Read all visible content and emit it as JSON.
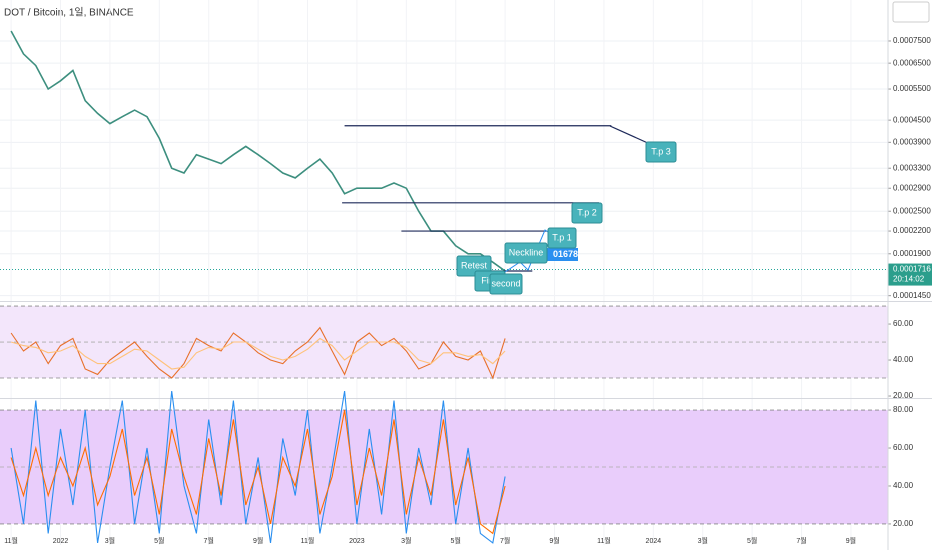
{
  "chart_data": [
    {
      "type": "line",
      "title": "DOT / Bitcoin, 1일, BINANCE",
      "x": [
        0,
        0.5,
        1,
        1.5,
        2,
        2.5,
        3,
        3.5,
        4,
        4.5,
        5,
        5.5,
        6,
        6.5,
        7,
        7.5,
        8,
        8.5,
        9,
        9.5,
        10,
        10.5,
        11,
        11.5,
        12,
        12.5,
        13,
        13.5,
        14,
        14.5,
        15,
        15.5,
        16,
        16.5,
        17,
        17.5,
        18,
        18.5,
        19,
        19.5,
        20
      ],
      "xlim": [
        -0.45,
        35.5
      ],
      "log_scale": true,
      "ylim": [
        0.000141,
        0.000977
      ],
      "grid": true,
      "yticks": [
        {
          "value": 0.00075,
          "label": "0.0007500"
        },
        {
          "value": 0.00065,
          "label": "0.0006500"
        },
        {
          "value": 0.00055,
          "label": "0.0005500"
        },
        {
          "value": 0.00045,
          "label": "0.0004500"
        },
        {
          "value": 0.00039,
          "label": "0.0003900"
        },
        {
          "value": 0.00033,
          "label": "0.0003300"
        },
        {
          "value": 0.00029,
          "label": "0.0002900"
        },
        {
          "value": 0.00025,
          "label": "0.0002500"
        },
        {
          "value": 0.00022,
          "label": "0.0002200"
        },
        {
          "value": 0.00019,
          "label": "0.0001900"
        },
        {
          "value": 0.000145,
          "label": "0.0001450"
        }
      ],
      "series": [
        {
          "color": "#3d8f7f",
          "values": [
            0.0008,
            0.00069,
            0.00064,
            0.00055,
            0.00058,
            0.00062,
            0.00051,
            0.00047,
            0.00044,
            0.00046,
            0.00048,
            0.00046,
            0.0004,
            0.00033,
            0.00032,
            0.00036,
            0.00035,
            0.00034,
            0.00036,
            0.00038,
            0.00036,
            0.00034,
            0.00032,
            0.00031,
            0.00033,
            0.00035,
            0.00032,
            0.00028,
            0.00029,
            0.00029,
            0.00029,
            0.0003,
            0.00029,
            0.00025,
            0.00022,
            0.00022,
            0.0002,
            0.00019,
            0.00019,
            0.00018,
            0.00017
          ]
        }
      ],
      "last_price": {
        "value": 0.0001716,
        "label": "0.0001716"
      },
      "countdown": "20:14:02",
      "levels": [
        {
          "value": 0.000434,
          "x": [
            13.5,
            24.3
          ]
        },
        {
          "value": 0.000264,
          "x": [
            13.4,
            23.8
          ]
        },
        {
          "value": 0.00022,
          "x": [
            15.8,
            21.7
          ]
        },
        {
          "value": 0.00017,
          "x": [
            18.2,
            21.1
          ]
        }
      ],
      "level_color": "#1e2a5a",
      "callouts": [
        "T.p 3",
        "T.p 2",
        "T.p 1",
        "Neckline",
        "Retest",
        "First",
        "second"
      ],
      "price_badge": "01678"
    },
    {
      "type": "line",
      "x": [
        0,
        0.5,
        1,
        1.5,
        2,
        2.5,
        3,
        3.5,
        4,
        4.5,
        5,
        5.5,
        6,
        6.5,
        7,
        7.5,
        8,
        8.5,
        9,
        9.5,
        10,
        10.5,
        11,
        11.5,
        12,
        12.5,
        13,
        13.5,
        14,
        14.5,
        15,
        15.5,
        16,
        16.5,
        17,
        17.5,
        18,
        18.5,
        19,
        19.5,
        20
      ],
      "xlim": [
        -0.45,
        35.5
      ],
      "ylim": [
        18.9,
        71.7
      ],
      "yticks": [
        {
          "value": 60,
          "label": "60.00"
        },
        {
          "value": 40,
          "label": "40.00"
        },
        {
          "value": 20,
          "label": "20.00"
        }
      ],
      "band": [
        30,
        70
      ],
      "midline": 50,
      "band_color": "#f3e6fb",
      "series": [
        {
          "color": "#e8702a",
          "values": [
            55,
            45,
            50,
            38,
            48,
            52,
            35,
            32,
            40,
            45,
            50,
            42,
            35,
            30,
            38,
            52,
            48,
            45,
            55,
            50,
            44,
            40,
            38,
            45,
            50,
            58,
            45,
            32,
            50,
            55,
            48,
            52,
            45,
            35,
            38,
            50,
            42,
            40,
            45,
            30,
            52
          ]
        },
        {
          "color": "#ffc27a",
          "values": [
            50,
            48,
            47,
            44,
            45,
            48,
            42,
            38,
            38,
            42,
            46,
            45,
            40,
            35,
            36,
            44,
            47,
            46,
            50,
            50,
            46,
            42,
            40,
            42,
            46,
            52,
            48,
            40,
            45,
            50,
            50,
            50,
            47,
            40,
            38,
            44,
            44,
            42,
            43,
            38,
            45
          ]
        }
      ]
    },
    {
      "type": "line",
      "x": [
        0,
        0.5,
        1,
        1.5,
        2,
        2.5,
        3,
        3.5,
        4,
        4.5,
        5,
        5.5,
        6,
        6.5,
        7,
        7.5,
        8,
        8.5,
        9,
        9.5,
        10,
        10.5,
        11,
        11.5,
        12,
        12.5,
        13,
        13.5,
        14,
        14.5,
        15,
        15.5,
        16,
        16.5,
        17,
        17.5,
        18,
        18.5,
        19,
        19.5,
        20
      ],
      "xlim": [
        -0.45,
        35.5
      ],
      "ylim": [
        8.9,
        85.3
      ],
      "yticks": [
        {
          "value": 80,
          "label": "80.00"
        },
        {
          "value": 60,
          "label": "60.00"
        },
        {
          "value": 40,
          "label": "40.00"
        },
        {
          "value": 20,
          "label": "20.00"
        }
      ],
      "band": [
        20,
        80
      ],
      "midline": 50,
      "band_color": "#e9cdfb",
      "xticks": [
        {
          "value": 0,
          "label": "11월"
        },
        {
          "value": 2,
          "label": "2022"
        },
        {
          "value": 4,
          "label": "3월"
        },
        {
          "value": 6,
          "label": "5월"
        },
        {
          "value": 8,
          "label": "7월"
        },
        {
          "value": 10,
          "label": "9월"
        },
        {
          "value": 12,
          "label": "11월"
        },
        {
          "value": 14,
          "label": "2023"
        },
        {
          "value": 16,
          "label": "3월"
        },
        {
          "value": 18,
          "label": "5월"
        },
        {
          "value": 20,
          "label": "7월"
        },
        {
          "value": 22,
          "label": "9월"
        },
        {
          "value": 24,
          "label": "11월"
        },
        {
          "value": 26,
          "label": "2024"
        },
        {
          "value": 28,
          "label": "3월"
        },
        {
          "value": 30,
          "label": "5월"
        },
        {
          "value": 32,
          "label": "7월"
        },
        {
          "value": 34,
          "label": "9월"
        }
      ],
      "series": [
        {
          "color": "#2a8ff0",
          "values": [
            60,
            20,
            85,
            15,
            70,
            30,
            80,
            10,
            50,
            85,
            20,
            60,
            15,
            90,
            40,
            15,
            75,
            30,
            85,
            20,
            55,
            10,
            65,
            35,
            80,
            15,
            50,
            90,
            20,
            70,
            25,
            85,
            15,
            60,
            30,
            85,
            20,
            60,
            15,
            10,
            45
          ]
        },
        {
          "color": "#ff6d00",
          "values": [
            55,
            35,
            60,
            35,
            55,
            40,
            60,
            30,
            45,
            70,
            35,
            55,
            25,
            70,
            45,
            25,
            65,
            35,
            75,
            30,
            50,
            20,
            55,
            40,
            70,
            25,
            45,
            80,
            30,
            60,
            35,
            75,
            25,
            55,
            35,
            75,
            30,
            55,
            20,
            15,
            40
          ]
        }
      ]
    }
  ]
}
